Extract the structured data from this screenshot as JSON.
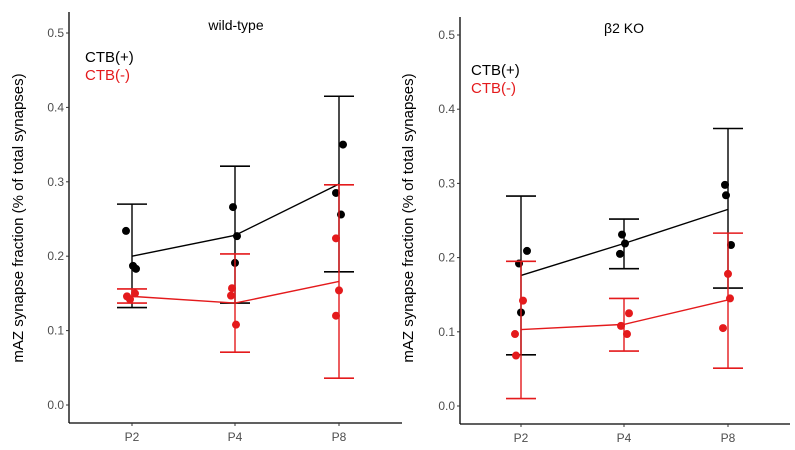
{
  "chart_data": [
    {
      "type": "scatter",
      "title": "wild-type",
      "xlabel": "",
      "ylabel": "mAZ synapse fraction (% of total synapses)",
      "categories": [
        "P2",
        "P4",
        "P8"
      ],
      "ylim": [
        -0.025,
        0.52
      ],
      "yticks": [
        "0.0",
        "0.1",
        "0.2",
        "0.3",
        "0.4",
        "0.5"
      ],
      "legend": {
        "position": "top-left",
        "entries": [
          "CTB(+)",
          "CTB(-)"
        ]
      },
      "grid": false,
      "series": [
        {
          "name": "CTB(+)",
          "color": "#000000",
          "mean": [
            0.2,
            0.228,
            0.297
          ],
          "err_upper": [
            0.27,
            0.321,
            0.415
          ],
          "err_lower": [
            0.131,
            0.137,
            0.179
          ],
          "points": [
            [
              0.234,
              0.187,
              0.183
            ],
            [
              0.266,
              0.227,
              0.191
            ],
            [
              0.35,
              0.285,
              0.256
            ]
          ]
        },
        {
          "name": "CTB(-)",
          "color": "#e41a1c",
          "mean": [
            0.146,
            0.137,
            0.166
          ],
          "err_upper": [
            0.156,
            0.203,
            0.296
          ],
          "err_lower": [
            0.137,
            0.071,
            0.036
          ],
          "points": [
            [
              0.146,
              0.142,
              0.15
            ],
            [
              0.157,
              0.147,
              0.108
            ],
            [
              0.224,
              0.154,
              0.12
            ]
          ]
        }
      ]
    },
    {
      "type": "scatter",
      "title": "β2 KO",
      "xlabel": "",
      "ylabel": "mAZ synapse fraction (% of total synapses)",
      "categories": [
        "P2",
        "P4",
        "P8"
      ],
      "ylim": [
        -0.025,
        0.52
      ],
      "yticks": [
        "0.0",
        "0.1",
        "0.2",
        "0.3",
        "0.4",
        "0.5"
      ],
      "legend": {
        "position": "top-left",
        "entries": [
          "CTB(+)",
          "CTB(-)"
        ]
      },
      "grid": false,
      "series": [
        {
          "name": "CTB(+)",
          "color": "#000000",
          "mean": [
            0.176,
            0.219,
            0.265
          ],
          "err_upper": [
            0.283,
            0.252,
            0.374
          ],
          "err_lower": [
            0.069,
            0.185,
            0.159
          ],
          "points": [
            [
              0.209,
              0.192,
              0.126
            ],
            [
              0.231,
              0.219,
              0.205
            ],
            [
              0.298,
              0.284,
              0.217
            ]
          ]
        },
        {
          "name": "CTB(-)",
          "color": "#e41a1c",
          "mean": [
            0.103,
            0.11,
            0.143
          ],
          "err_upper": [
            0.195,
            0.145,
            0.233
          ],
          "err_lower": [
            0.01,
            0.074,
            0.051
          ],
          "points": [
            [
              0.142,
              0.097,
              0.068
            ],
            [
              0.125,
              0.108,
              0.097
            ],
            [
              0.178,
              0.145,
              0.105
            ]
          ]
        }
      ]
    }
  ]
}
